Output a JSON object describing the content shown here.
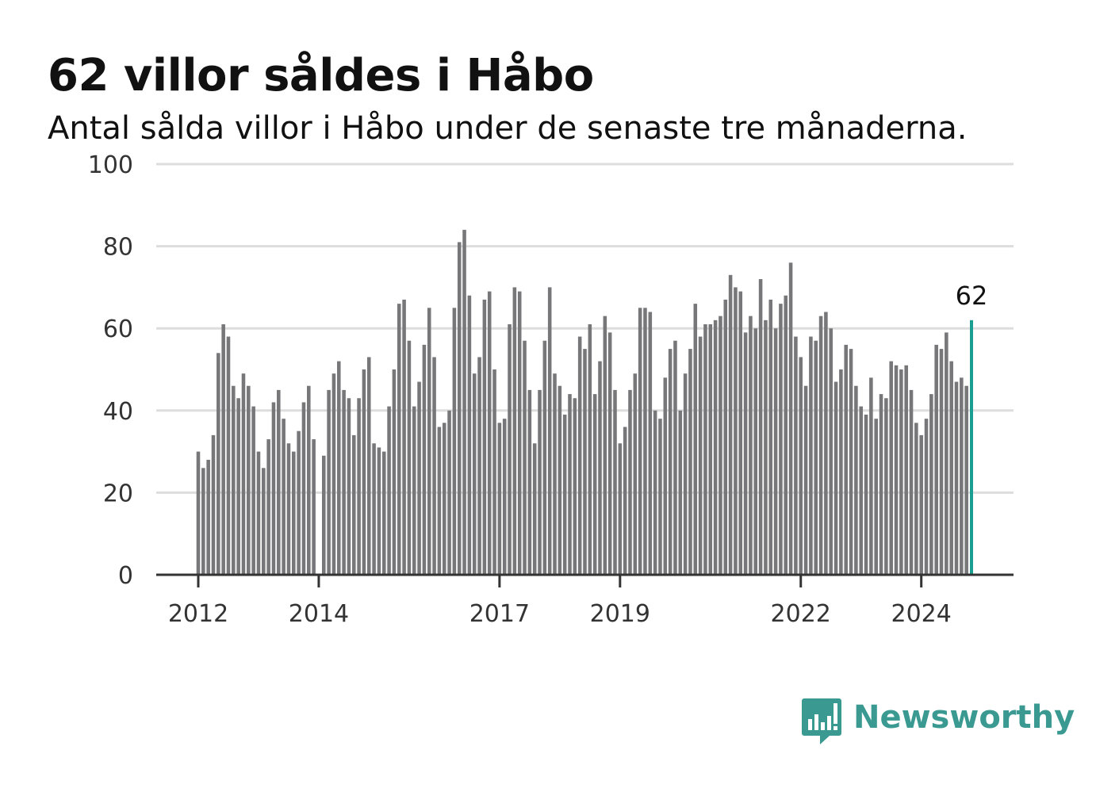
{
  "title": "62 villor såldes i Håbo",
  "subtitle": "Antal sålda villor i Håbo under de senaste tre månaderna.",
  "logo": {
    "text": "Newsworthy",
    "icon": "bar-chart-speech-bubble-icon",
    "color": "#3a9a92"
  },
  "colors": {
    "bar": "#77777a",
    "highlight": "#1a9e91",
    "grid": "#dddddd",
    "axis": "#333333"
  },
  "chart_data": {
    "type": "bar",
    "title": "62 villor såldes i Håbo",
    "subtitle": "Antal sålda villor i Håbo under de senaste tre månaderna.",
    "x_start": "2012-01",
    "x_end": "2025-01",
    "ylim": [
      0,
      100
    ],
    "y_ticks": [
      0,
      20,
      40,
      60,
      80,
      100
    ],
    "x_ticks": [
      {
        "label": "2012",
        "date": "2012-01"
      },
      {
        "label": "2014",
        "date": "2014-01"
      },
      {
        "label": "2017",
        "date": "2017-01"
      },
      {
        "label": "2019",
        "date": "2019-01"
      },
      {
        "label": "2022",
        "date": "2022-01"
      },
      {
        "label": "2024",
        "date": "2024-01"
      }
    ],
    "grid": true,
    "highlight_label": "62",
    "values": [
      30,
      26,
      28,
      34,
      54,
      61,
      58,
      46,
      43,
      49,
      46,
      41,
      30,
      26,
      33,
      42,
      45,
      38,
      32,
      30,
      35,
      42,
      46,
      33,
      null,
      29,
      45,
      49,
      52,
      45,
      43,
      34,
      43,
      50,
      53,
      32,
      31,
      30,
      41,
      50,
      66,
      67,
      57,
      41,
      47,
      56,
      65,
      53,
      36,
      37,
      40,
      65,
      81,
      84,
      68,
      49,
      53,
      67,
      69,
      50,
      37,
      38,
      61,
      70,
      69,
      57,
      45,
      32,
      45,
      57,
      70,
      49,
      46,
      39,
      44,
      43,
      58,
      55,
      61,
      44,
      52,
      63,
      59,
      45,
      32,
      36,
      45,
      49,
      65,
      65,
      64,
      40,
      38,
      48,
      55,
      57,
      40,
      49,
      55,
      66,
      58,
      61,
      61,
      62,
      63,
      67,
      73,
      70,
      69,
      59,
      63,
      60,
      72,
      62,
      67,
      60,
      66,
      68,
      76,
      58,
      53,
      46,
      58,
      57,
      63,
      64,
      60,
      47,
      50,
      56,
      55,
      46,
      41,
      39,
      48,
      38,
      44,
      43,
      52,
      51,
      50,
      51,
      45,
      37,
      34,
      38,
      44,
      56,
      55,
      59,
      52,
      47,
      48,
      46,
      62
    ]
  }
}
